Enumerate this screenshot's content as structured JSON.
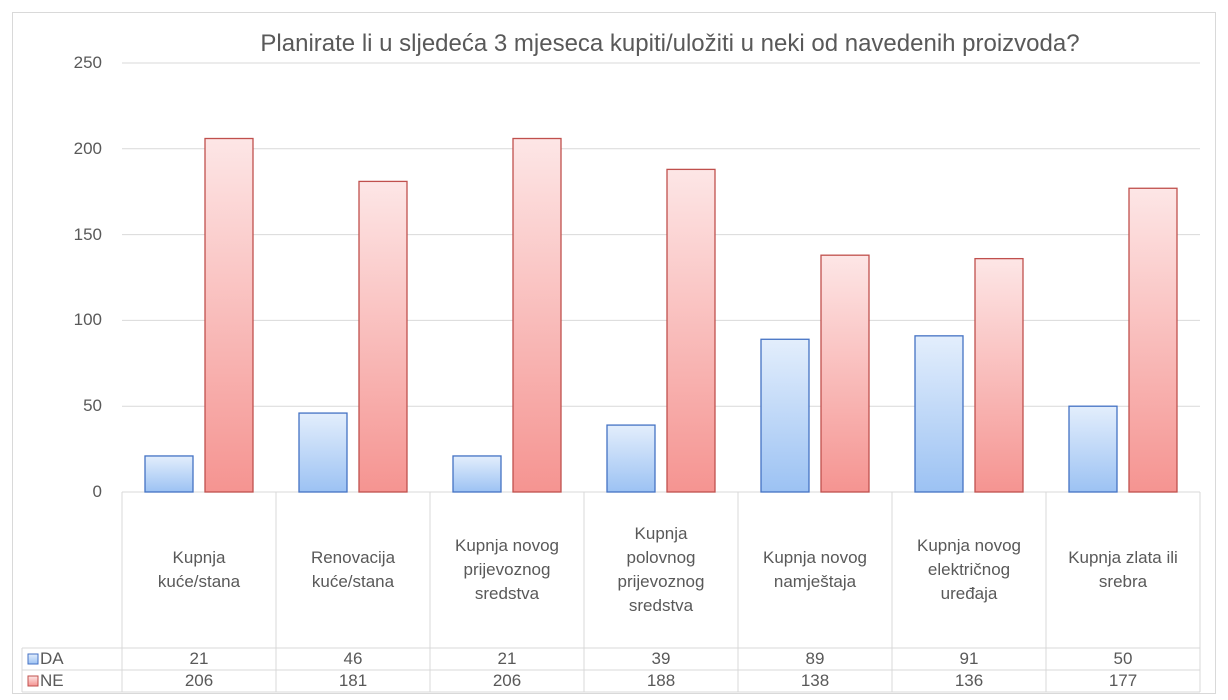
{
  "chart_data": {
    "type": "bar",
    "title": "Planirate li u sljedeća 3 mjeseca kupiti/uložiti u neki od navedenih proizvoda?",
    "categories": [
      "Kupnja kuće/stana",
      "Renovacija kuće/stana",
      "Kupnja novog prijevoznog sredstva",
      "Kupnja polovnog prijevoznog sredstva",
      "Kupnja novog namještaja",
      "Kupnja novog električnog uređaja",
      "Kupnja zlata ili srebra"
    ],
    "series": [
      {
        "name": "DA",
        "color": "#4472c4",
        "values": [
          21,
          46,
          21,
          39,
          89,
          91,
          50
        ]
      },
      {
        "name": "NE",
        "color": "#c0504d",
        "values": [
          206,
          181,
          206,
          188,
          138,
          136,
          177
        ]
      }
    ],
    "ylim": [
      0,
      250
    ],
    "yticks": [
      0,
      50,
      100,
      150,
      200,
      250
    ],
    "grid": true,
    "data_table": true
  }
}
